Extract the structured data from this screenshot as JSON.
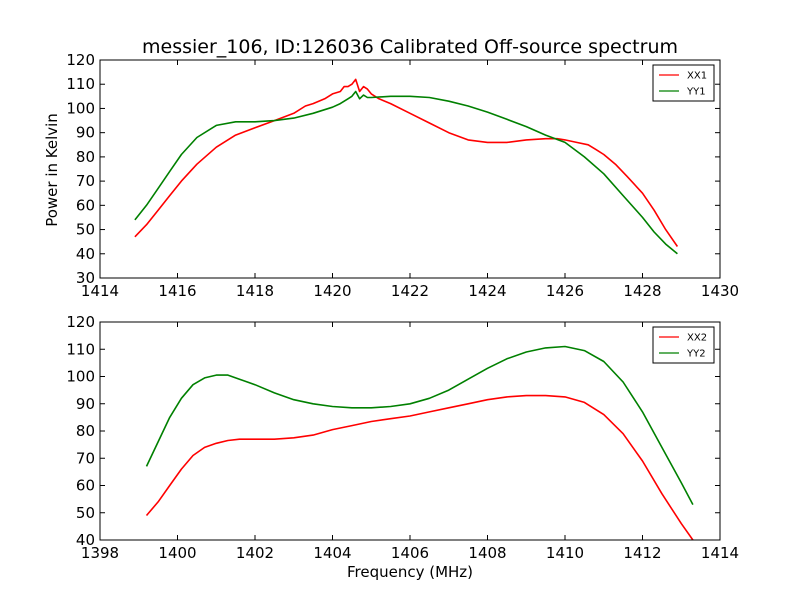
{
  "chart_data": [
    {
      "type": "line",
      "title": "messier_106, ID:126036 Calibrated Off-source spectrum",
      "xlabel": "",
      "ylabel": "Power in Kelvin",
      "xlim": [
        1414,
        1430
      ],
      "ylim": [
        30,
        120
      ],
      "xticks": [
        1414,
        1416,
        1418,
        1420,
        1422,
        1424,
        1426,
        1428,
        1430
      ],
      "yticks": [
        30,
        40,
        50,
        60,
        70,
        80,
        90,
        100,
        110,
        120
      ],
      "legend": "top-right",
      "grid": false,
      "series": [
        {
          "name": "XX1",
          "color": "#ff0000",
          "x": [
            1414.9,
            1415.2,
            1415.5,
            1415.8,
            1416.1,
            1416.5,
            1417.0,
            1417.5,
            1418.0,
            1418.5,
            1419.0,
            1419.3,
            1419.5,
            1419.8,
            1420.0,
            1420.2,
            1420.3,
            1420.4,
            1420.5,
            1420.6,
            1420.7,
            1420.8,
            1420.9,
            1421.0,
            1421.2,
            1421.5,
            1422.0,
            1422.5,
            1423.0,
            1423.5,
            1424.0,
            1424.5,
            1425.0,
            1425.5,
            1425.8,
            1426.0,
            1426.3,
            1426.6,
            1426.8,
            1427.0,
            1427.3,
            1427.6,
            1428.0,
            1428.3,
            1428.6,
            1428.9
          ],
          "values": [
            47,
            52,
            58,
            64,
            70,
            77,
            84,
            89,
            92,
            95,
            98,
            101,
            102,
            104,
            106,
            107,
            109,
            109,
            110,
            112,
            107,
            109,
            108,
            106,
            104,
            102,
            98,
            94,
            90,
            87,
            86,
            86,
            87,
            87.5,
            87.5,
            87,
            86,
            85,
            83,
            81,
            77,
            72,
            65,
            58,
            50,
            43
          ]
        },
        {
          "name": "YY1",
          "color": "#008000",
          "x": [
            1414.9,
            1415.2,
            1415.5,
            1415.8,
            1416.1,
            1416.5,
            1417.0,
            1417.5,
            1418.0,
            1418.5,
            1419.0,
            1419.5,
            1420.0,
            1420.2,
            1420.4,
            1420.5,
            1420.6,
            1420.7,
            1420.8,
            1420.9,
            1421.0,
            1421.5,
            1422.0,
            1422.5,
            1423.0,
            1423.5,
            1424.0,
            1424.5,
            1425.0,
            1425.5,
            1426.0,
            1426.5,
            1427.0,
            1427.5,
            1428.0,
            1428.3,
            1428.6,
            1428.9
          ],
          "values": [
            54,
            60,
            67,
            74,
            81,
            88,
            93,
            94.5,
            94.5,
            95,
            96,
            98,
            100.5,
            102,
            104,
            105,
            107,
            104,
            105.5,
            104.5,
            104.5,
            105,
            105,
            104.5,
            103,
            101,
            98.5,
            95.5,
            92.5,
            89,
            86,
            80,
            73,
            64,
            55,
            49,
            44,
            40
          ]
        }
      ]
    },
    {
      "type": "line",
      "title": "",
      "xlabel": "Frequency (MHz)",
      "ylabel": "",
      "xlim": [
        1398,
        1414
      ],
      "ylim": [
        40,
        120
      ],
      "xticks": [
        1398,
        1400,
        1402,
        1404,
        1406,
        1408,
        1410,
        1412,
        1414
      ],
      "yticks": [
        40,
        50,
        60,
        70,
        80,
        90,
        100,
        110,
        120
      ],
      "legend": "top-right",
      "grid": false,
      "series": [
        {
          "name": "XX2",
          "color": "#ff0000",
          "x": [
            1399.2,
            1399.5,
            1399.8,
            1400.1,
            1400.4,
            1400.7,
            1401.0,
            1401.3,
            1401.6,
            1402.0,
            1402.5,
            1403.0,
            1403.5,
            1404.0,
            1404.5,
            1405.0,
            1405.5,
            1406.0,
            1406.5,
            1407.0,
            1407.5,
            1408.0,
            1408.5,
            1409.0,
            1409.5,
            1410.0,
            1410.5,
            1411.0,
            1411.5,
            1412.0,
            1412.5,
            1413.0,
            1413.3
          ],
          "values": [
            49,
            54,
            60,
            66,
            71,
            74,
            75.5,
            76.5,
            77,
            77,
            77,
            77.5,
            78.5,
            80.5,
            82,
            83.5,
            84.5,
            85.5,
            87,
            88.5,
            90,
            91.5,
            92.5,
            93,
            93,
            92.5,
            90.5,
            86,
            79,
            69,
            57,
            46,
            40
          ]
        },
        {
          "name": "YY2",
          "color": "#008000",
          "x": [
            1399.2,
            1399.5,
            1399.8,
            1400.1,
            1400.4,
            1400.7,
            1401.0,
            1401.3,
            1401.6,
            1402.0,
            1402.5,
            1403.0,
            1403.5,
            1404.0,
            1404.5,
            1405.0,
            1405.5,
            1406.0,
            1406.5,
            1407.0,
            1407.5,
            1408.0,
            1408.5,
            1409.0,
            1409.5,
            1410.0,
            1410.5,
            1411.0,
            1411.5,
            1412.0,
            1412.5,
            1413.0,
            1413.3
          ],
          "values": [
            67,
            76,
            85,
            92,
            97,
            99.5,
            100.5,
            100.5,
            99,
            97,
            94,
            91.5,
            90,
            89,
            88.5,
            88.5,
            89,
            90,
            92,
            95,
            99,
            103,
            106.5,
            109,
            110.5,
            111,
            109.5,
            105.5,
            98,
            87,
            74,
            61,
            53
          ]
        }
      ]
    }
  ]
}
